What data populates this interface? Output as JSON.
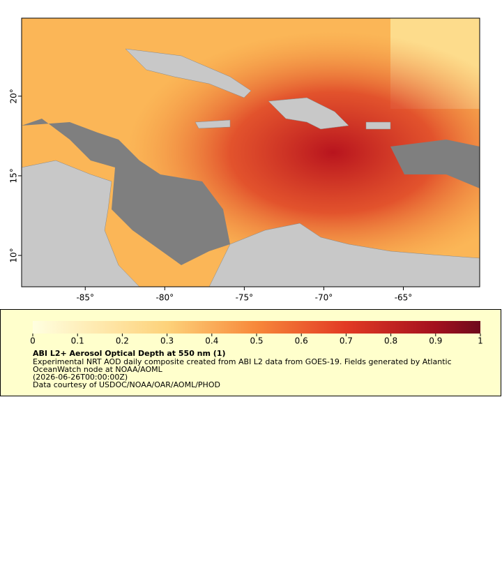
{
  "map": {
    "xlim": [
      -89,
      -60.2
    ],
    "ylim": [
      8.03,
      24.9
    ],
    "xticks": [
      {
        "value": -85,
        "label": "-85°"
      },
      {
        "value": -80,
        "label": "-80°"
      },
      {
        "value": -75,
        "label": "-75°"
      },
      {
        "value": -70,
        "label": "-70°"
      },
      {
        "value": -65,
        "label": "-65°"
      }
    ],
    "yticks": [
      {
        "value": 10,
        "label": "10°"
      },
      {
        "value": 15,
        "label": "15°"
      },
      {
        "value": 20,
        "label": "20°"
      }
    ]
  },
  "colorbar": {
    "range": [
      0,
      1
    ],
    "ticks": [
      0,
      0.1,
      0.2,
      0.3,
      0.4,
      0.5,
      0.6,
      0.7,
      0.8,
      0.9,
      1
    ]
  },
  "legend": {
    "title": "ABI L2+ Aerosol Optical Depth at 550 nm (1)",
    "lines": [
      "Experimental NRT AOD daily composite created from ABI L2 data from GOES-19. Fields generated by Atlantic",
      "OceanWatch node at NOAA/AOML",
      "(2026-06-26T00:00:00Z)",
      "Data courtesy of USDOC/NOAA/OAR/AOML/PHOD"
    ]
  }
}
